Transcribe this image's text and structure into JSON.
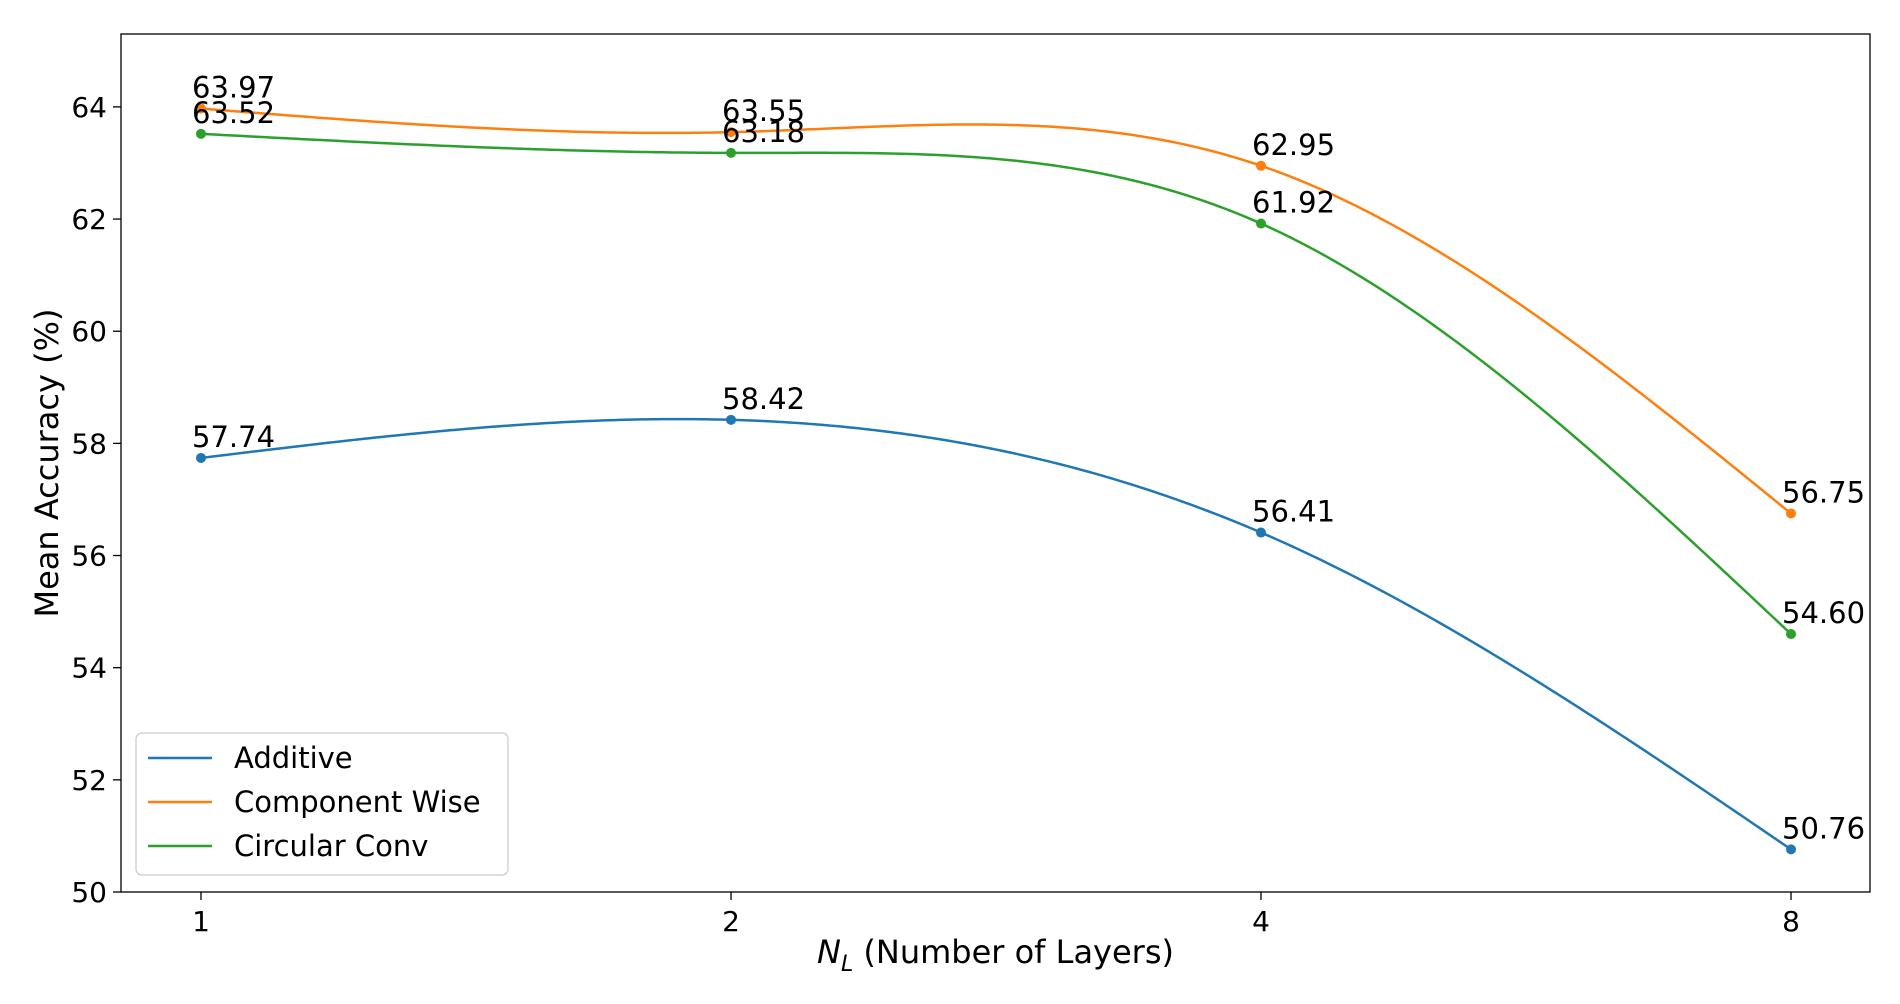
{
  "chart_data": {
    "type": "line",
    "title": "",
    "xlabel_var": "N",
    "xlabel_sub": "L",
    "xlabel_rest": " (Number of Layers)",
    "ylabel": "Mean Accuracy (%)",
    "categories": [
      "1",
      "2",
      "4",
      "8"
    ],
    "x_scale": "log2",
    "ylim": [
      50,
      65.3
    ],
    "yticks": [
      50,
      52,
      54,
      56,
      58,
      60,
      62,
      64
    ],
    "grid": false,
    "legend_position": "lower-left",
    "series": [
      {
        "name": "Additive",
        "color": "#1f77b4",
        "values": [
          57.74,
          58.42,
          56.41,
          50.76
        ],
        "labels": [
          "57.74",
          "58.42",
          "56.41",
          "50.76"
        ]
      },
      {
        "name": "Component Wise",
        "color": "#ff7f0e",
        "values": [
          63.97,
          63.55,
          62.95,
          56.75
        ],
        "labels": [
          "63.97",
          "63.55",
          "62.95",
          "56.75"
        ]
      },
      {
        "name": "Circular Conv",
        "color": "#2ca02c",
        "values": [
          63.52,
          63.18,
          61.92,
          54.6
        ],
        "labels": [
          "63.52",
          "63.18",
          "61.92",
          "54.60"
        ]
      }
    ]
  }
}
